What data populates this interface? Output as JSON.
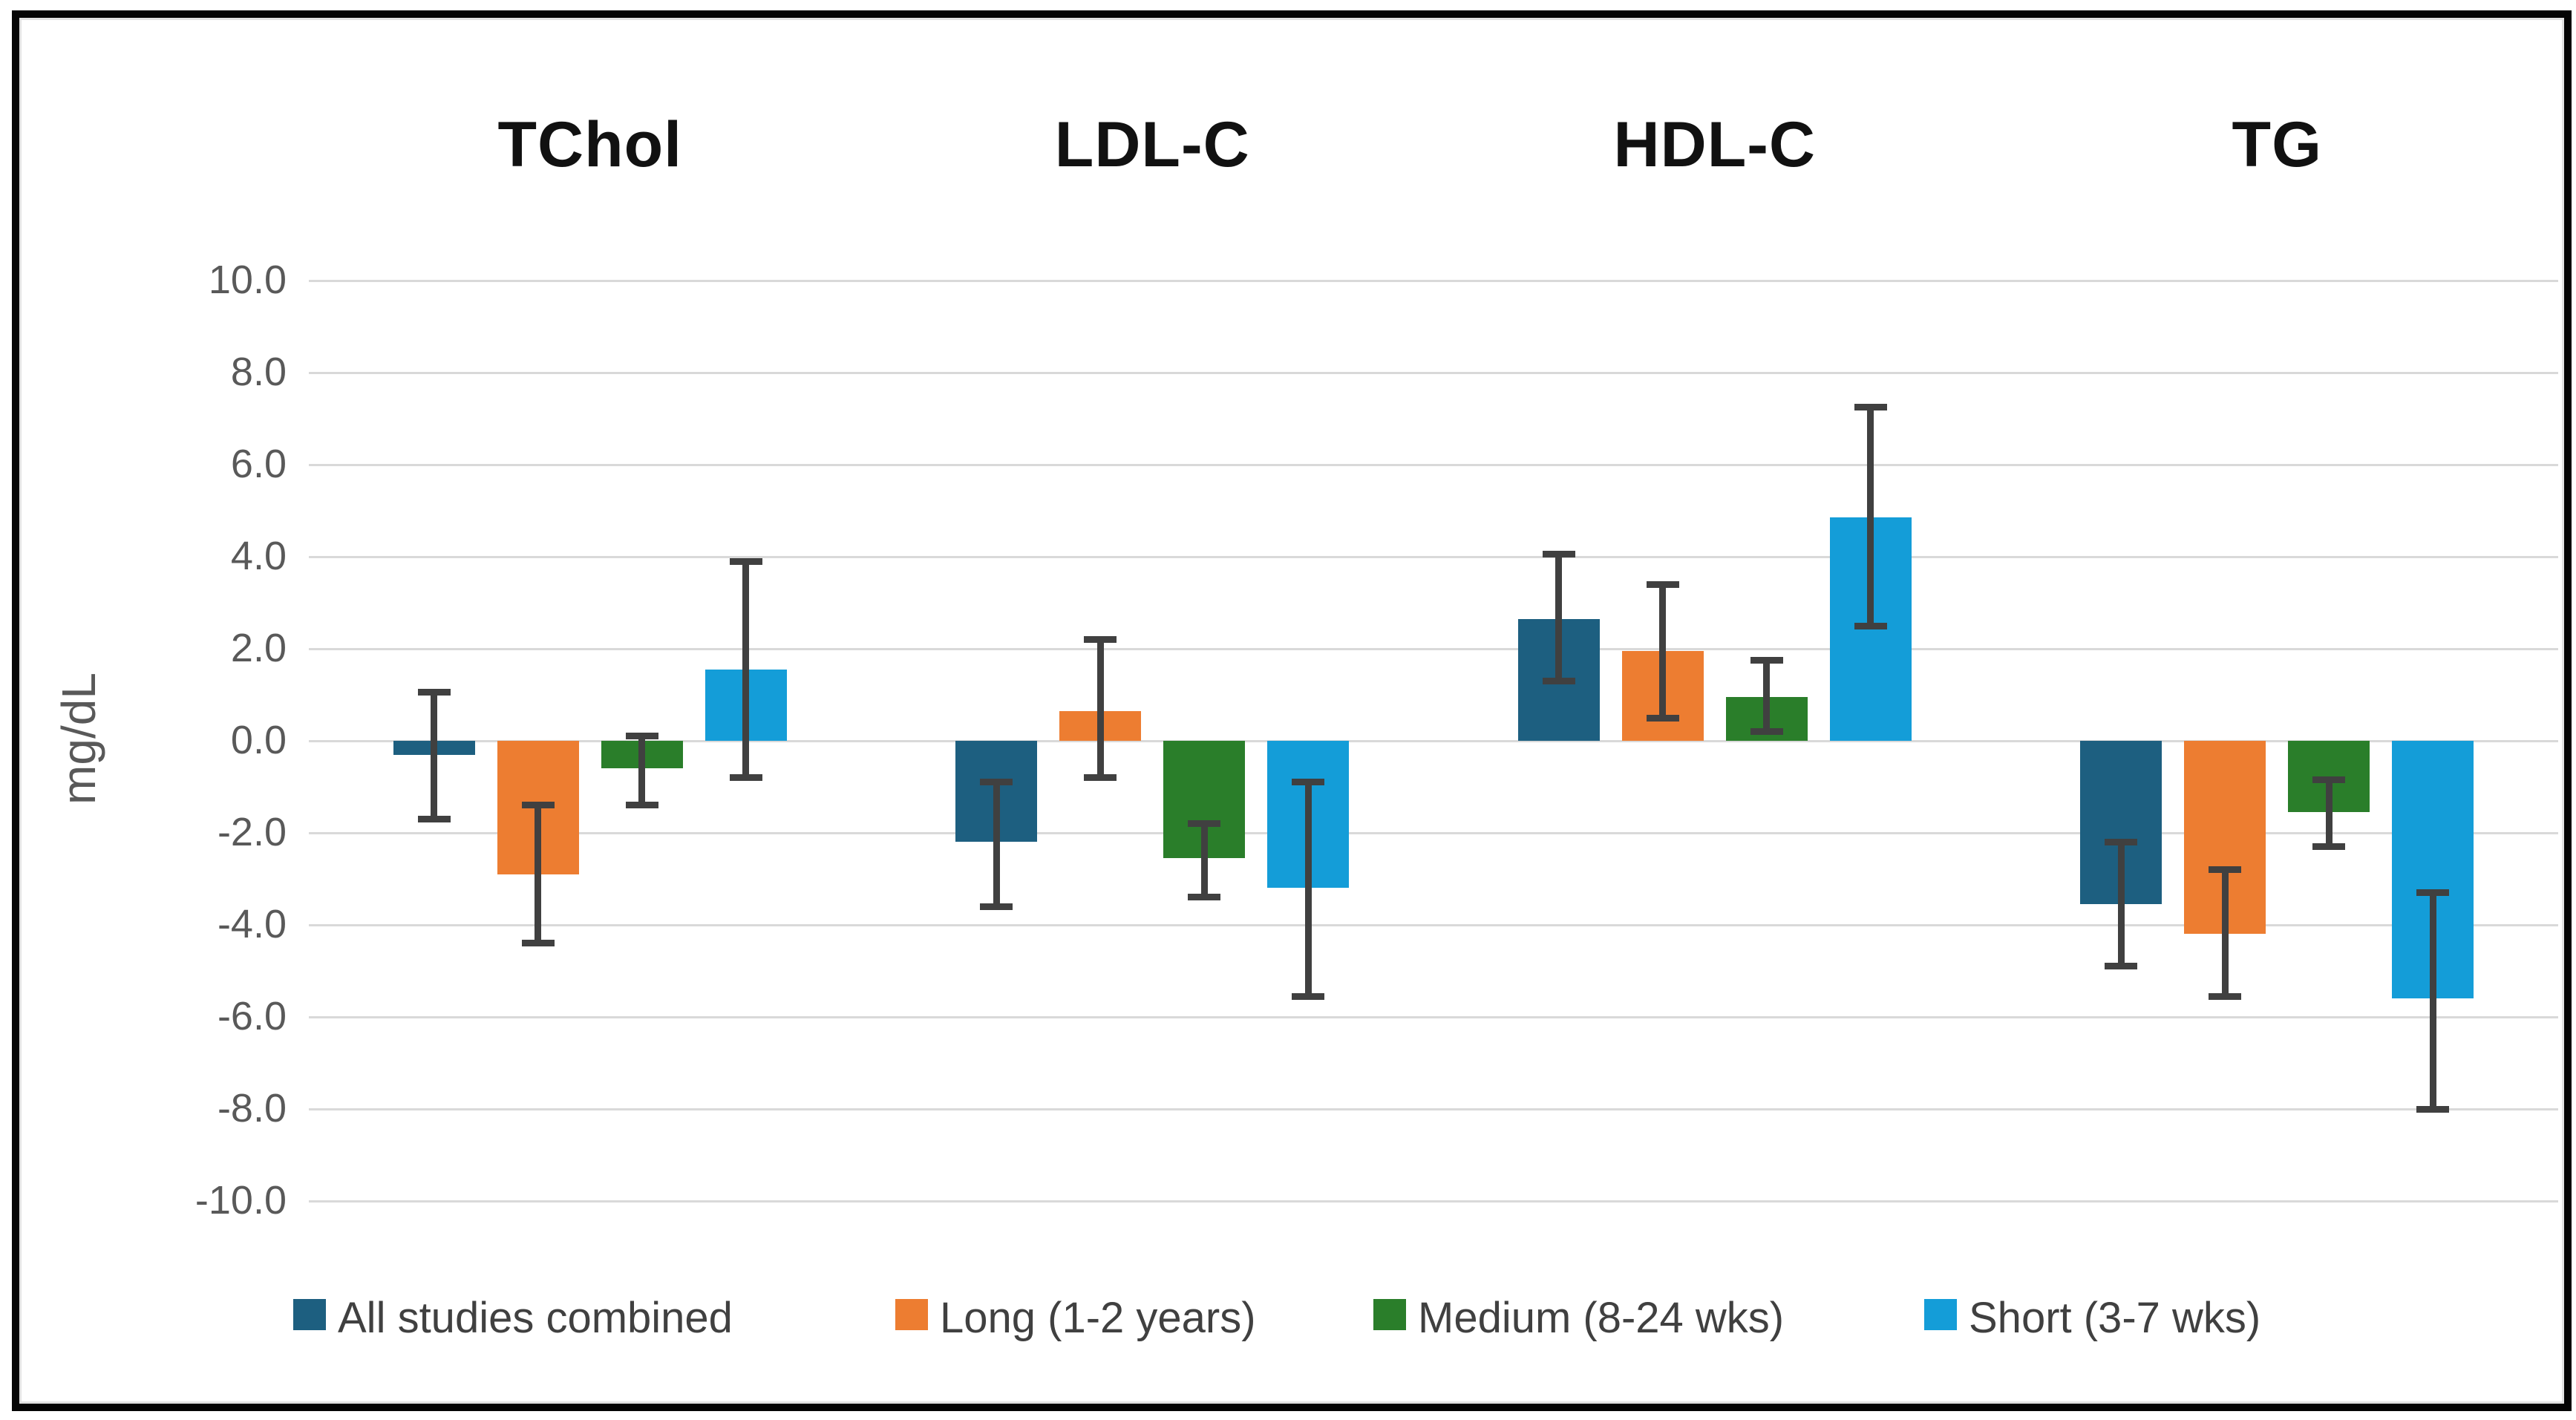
{
  "colors": {
    "background": "#FFFFFF",
    "frame_border": "#000000",
    "gridline": "#D9D9D9",
    "tick_text": "#595959",
    "axis_title_text": "#595959",
    "group_title_text": "#111111",
    "legend_text": "#404040",
    "error_bar": "#404040"
  },
  "chart_data": {
    "type": "bar",
    "title": "",
    "categories": [
      "TChol",
      "LDL-C",
      "HDL-C",
      "TG"
    ],
    "ylabel": "mg/dL",
    "ylim": [
      -10.0,
      10.0
    ],
    "ytick_step": 2.0,
    "ytick_labels": [
      "10.0",
      "8.0",
      "6.0",
      "4.0",
      "2.0",
      "0.0",
      "-2.0",
      "-4.0",
      "-6.0",
      "-8.0",
      "-10.0"
    ],
    "grid": true,
    "error_bars": true,
    "legend_position": "bottom",
    "series": [
      {
        "name": "All studies combined",
        "color": "#1D5F80",
        "values": [
          -0.3,
          -2.2,
          2.65,
          -3.55
        ],
        "error_low": [
          -1.7,
          -3.6,
          1.3,
          -4.9
        ],
        "error_high": [
          1.05,
          -0.9,
          4.05,
          -2.2
        ]
      },
      {
        "name": "Long (1-2 years)",
        "color": "#ED7D31",
        "values": [
          -2.9,
          0.65,
          1.95,
          -4.2
        ],
        "error_low": [
          -4.4,
          -0.8,
          0.5,
          -5.55
        ],
        "error_high": [
          -1.4,
          2.2,
          3.4,
          -2.8
        ]
      },
      {
        "name": "Medium (8-24 wks)",
        "color": "#2A7E2A",
        "values": [
          -0.6,
          -2.55,
          0.95,
          -1.55
        ],
        "error_low": [
          -1.4,
          -3.4,
          0.2,
          -2.3
        ],
        "error_high": [
          0.1,
          -1.8,
          1.75,
          -0.85
        ]
      },
      {
        "name": "Short (3-7 wks)",
        "color": "#149DD8",
        "values": [
          1.55,
          -3.2,
          4.85,
          -5.6
        ],
        "error_low": [
          -0.8,
          -5.55,
          2.5,
          -8.0
        ],
        "error_high": [
          3.9,
          -0.9,
          7.25,
          -3.3
        ]
      }
    ]
  }
}
